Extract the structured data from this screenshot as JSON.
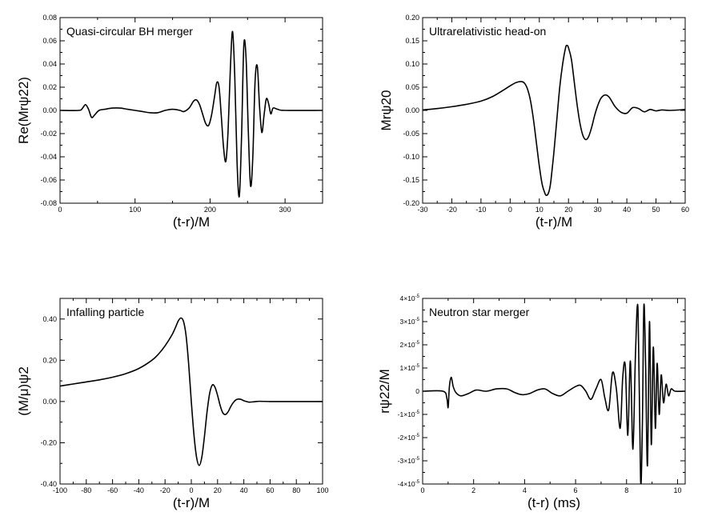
{
  "chart_data": [
    {
      "type": "line",
      "title": "Quasi-circular BH merger",
      "xlabel": "(t-r)/M",
      "ylabel": "Re(Mrψ22)",
      "xlim": [
        0,
        350
      ],
      "ylim": [
        -0.08,
        0.08
      ],
      "x_ticks": [
        0,
        100,
        200,
        300
      ],
      "x_tick_labels": [
        "0",
        "100",
        "200",
        "300"
      ],
      "y_ticks": [
        -0.08,
        -0.06,
        -0.04,
        -0.02,
        0,
        0.02,
        0.04,
        0.06,
        0.08
      ],
      "y_tick_labels": [
        "-0.08",
        "-0.06",
        "-0.04",
        "-0.02",
        "0.00",
        "0.02",
        "0.04",
        "0.06",
        "0.08"
      ],
      "grid": false,
      "series": [
        {
          "x": [
            0,
            25,
            30,
            34,
            38,
            42,
            46,
            52,
            60,
            70,
            80,
            90,
            100,
            110,
            120,
            130,
            140,
            150,
            160,
            165,
            172,
            178,
            182,
            186,
            190,
            194,
            198,
            202,
            206,
            209,
            212,
            215,
            218,
            221,
            224,
            227,
            230,
            233,
            236,
            239,
            242,
            245,
            248,
            251,
            254,
            257,
            260,
            263,
            266,
            269,
            272,
            275,
            278,
            281,
            284,
            290,
            300,
            350
          ],
          "y": [
            0,
            0,
            0.002,
            0.005,
            0.001,
            -0.006,
            -0.004,
            0,
            0.001,
            0.002,
            0.002,
            0.001,
            0,
            -0.001,
            -0.002,
            -0.002,
            0,
            0.001,
            0,
            -0.001,
            0.002,
            0.008,
            0.009,
            0.005,
            -0.003,
            -0.011,
            -0.013,
            -0.004,
            0.012,
            0.024,
            0.02,
            -0.005,
            -0.032,
            -0.044,
            -0.018,
            0.035,
            0.068,
            0.028,
            -0.045,
            -0.074,
            -0.022,
            0.056,
            0.045,
            -0.018,
            -0.065,
            -0.04,
            0.025,
            0.038,
            0.003,
            -0.019,
            -0.004,
            0.01,
            0.006,
            -0.003,
            0.002,
            0.001,
            0,
            0
          ]
        }
      ]
    },
    {
      "type": "line",
      "title": "Ultrarelativistic head-on",
      "xlabel": "(t-r)/M",
      "ylabel": "Mrψ20",
      "xlim": [
        -30,
        60
      ],
      "ylim": [
        -0.2,
        0.2
      ],
      "x_ticks": [
        -30,
        -20,
        -10,
        0,
        10,
        20,
        30,
        40,
        50,
        60
      ],
      "x_tick_labels": [
        "-30",
        "-20",
        "-10",
        "0",
        "10",
        "20",
        "30",
        "40",
        "50",
        "60"
      ],
      "y_ticks": [
        -0.2,
        -0.15,
        -0.1,
        -0.05,
        0,
        0.05,
        0.1,
        0.15,
        0.2
      ],
      "y_tick_labels": [
        "-0.20",
        "-0.15",
        "-0.10",
        "-0.05",
        "0.00",
        "0.05",
        "0.10",
        "0.15",
        "0.20"
      ],
      "grid": false,
      "series": [
        {
          "x": [
            -30,
            -25,
            -20,
            -15,
            -10,
            -6,
            -2,
            0,
            2,
            4,
            5,
            6,
            7,
            8,
            9,
            10,
            11,
            12,
            12.5,
            13,
            13.5,
            14,
            15,
            16,
            17,
            18,
            19,
            19.5,
            20,
            21,
            22,
            23,
            24,
            25,
            26,
            27,
            28,
            29,
            30,
            31,
            32,
            33,
            34,
            35,
            36,
            38,
            40,
            42,
            44,
            46,
            48,
            50,
            52,
            55,
            60
          ],
          "y": [
            0.001,
            0.004,
            0.008,
            0.013,
            0.02,
            0.03,
            0.045,
            0.053,
            0.06,
            0.062,
            0.058,
            0.045,
            0.02,
            -0.02,
            -0.07,
            -0.12,
            -0.16,
            -0.18,
            -0.183,
            -0.18,
            -0.17,
            -0.15,
            -0.09,
            -0.02,
            0.05,
            0.1,
            0.135,
            0.14,
            0.135,
            0.11,
            0.06,
            0.01,
            -0.03,
            -0.055,
            -0.063,
            -0.055,
            -0.035,
            -0.01,
            0.01,
            0.025,
            0.032,
            0.033,
            0.028,
            0.018,
            0.008,
            -0.004,
            -0.006,
            0.006,
            0.004,
            -0.003,
            0.002,
            -0.001,
            0.001,
            0,
            0.002
          ]
        }
      ]
    },
    {
      "type": "line",
      "title": "Infalling particle",
      "xlabel": "(t-r)/M",
      "ylabel": "(M/μ)ψ2",
      "xlim": [
        -100,
        100
      ],
      "ylim": [
        -0.4,
        0.5
      ],
      "x_ticks": [
        -100,
        -80,
        -60,
        -40,
        -20,
        0,
        20,
        40,
        60,
        80,
        100
      ],
      "x_tick_labels": [
        "-100",
        "-80",
        "-60",
        "-40",
        "-20",
        "0",
        "20",
        "40",
        "60",
        "80",
        "100"
      ],
      "y_ticks": [
        -0.4,
        -0.2,
        0,
        0.2,
        0.4
      ],
      "y_tick_labels": [
        "-0.40",
        "-0.20",
        "0.00",
        "0.20",
        "0.40"
      ],
      "grid": false,
      "series": [
        {
          "x": [
            -100,
            -90,
            -80,
            -70,
            -60,
            -50,
            -40,
            -30,
            -25,
            -20,
            -15,
            -12,
            -10,
            -8,
            -6,
            -4,
            -2,
            0,
            2,
            4,
            6,
            8,
            10,
            12,
            14,
            16,
            18,
            20,
            22,
            24,
            26,
            28,
            30,
            32,
            34,
            36,
            38,
            40,
            42,
            44,
            48,
            52,
            60,
            70,
            80,
            100
          ],
          "y": [
            0.075,
            0.085,
            0.095,
            0.105,
            0.118,
            0.135,
            0.16,
            0.2,
            0.23,
            0.27,
            0.32,
            0.36,
            0.39,
            0.405,
            0.39,
            0.32,
            0.18,
            0.0,
            -0.16,
            -0.27,
            -0.31,
            -0.27,
            -0.17,
            -0.05,
            0.04,
            0.08,
            0.07,
            0.03,
            -0.02,
            -0.055,
            -0.063,
            -0.05,
            -0.025,
            -0.005,
            0.008,
            0.012,
            0.01,
            0.004,
            0.0,
            -0.003,
            -0.001,
            0.001,
            0,
            0,
            0,
            0
          ]
        }
      ]
    },
    {
      "type": "line",
      "title": "Neutron star merger",
      "xlabel": "(t-r) (ms)",
      "ylabel": "rψ22/M",
      "xlim": [
        0,
        10.3
      ],
      "ylim": [
        -4e-05,
        4e-05
      ],
      "x_ticks": [
        0,
        2,
        4,
        6,
        8,
        10
      ],
      "x_tick_labels": [
        "0",
        "2",
        "4",
        "6",
        "8",
        "10"
      ],
      "y_ticks": [
        -4e-05,
        -3e-05,
        -2e-05,
        -1e-05,
        0,
        1e-05,
        2e-05,
        3e-05,
        4e-05
      ],
      "y_tick_labels": [
        "-4×10",
        "-3×10",
        "-2×10",
        "-1×10",
        "0",
        "1×10",
        "2×10",
        "3×10",
        "4×10"
      ],
      "y_tick_exponent": "-5",
      "grid": false,
      "series": [
        {
          "x": [
            0,
            0.8,
            0.95,
            1.0,
            1.05,
            1.12,
            1.2,
            1.3,
            1.5,
            1.8,
            2.1,
            2.5,
            2.9,
            3.3,
            3.6,
            3.9,
            4.2,
            4.5,
            4.8,
            5.1,
            5.4,
            5.7,
            6.0,
            6.2,
            6.4,
            6.6,
            6.8,
            7.0,
            7.15,
            7.3,
            7.45,
            7.6,
            7.75,
            7.85,
            7.95,
            8.05,
            8.15,
            8.25,
            8.35,
            8.45,
            8.55,
            8.62,
            8.68,
            8.75,
            8.82,
            8.9,
            8.97,
            9.05,
            9.13,
            9.2,
            9.28,
            9.36,
            9.45,
            9.55,
            9.65,
            9.75,
            9.9,
            10.3
          ],
          "y": [
            0,
            0,
            -3e-06,
            -7e-06,
            2e-06,
            6e-06,
            2e-06,
            -5e-07,
            -2e-06,
            -1e-06,
            5e-07,
            0.0,
            1e-06,
            1e-06,
            -5e-07,
            -1.5e-06,
            -1e-06,
            5e-07,
            1e-06,
            -1e-06,
            -2e-06,
            0.0,
            2e-06,
            2.5e-06,
            0.0,
            -3.5e-06,
            1e-06,
            5e-06,
            -3e-06,
            -8e-06,
            8e-06,
            1e-06,
            -1.6e-05,
            6e-06,
            1.1e-05,
            -1.9e-05,
            1.3e-05,
            -2.5e-05,
            1.6e-05,
            3.5e-05,
            -3.8e-05,
            -1.5e-05,
            3.7e-05,
            1e-05,
            -3.2e-05,
            3e-05,
            -2.3e-05,
            1.9e-05,
            -1.6e-05,
            1.2e-05,
            -1e-05,
            7e-06,
            -5e-06,
            3e-06,
            -2e-06,
            1e-06,
            0.0,
            0.0
          ]
        }
      ]
    }
  ]
}
